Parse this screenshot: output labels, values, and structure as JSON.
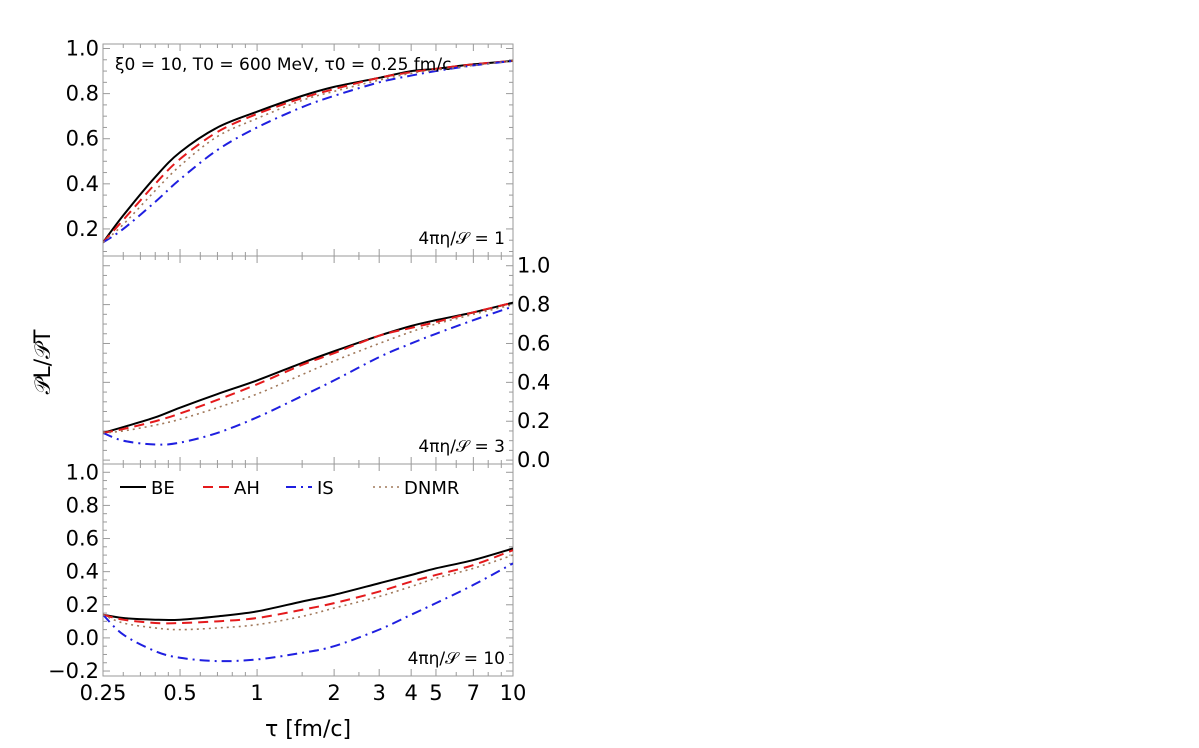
{
  "chart_data": {
    "type": "line",
    "title": "ξ0 = 10, T0 = 600 MeV, τ0 = 0.25 fm/c",
    "xlabel": "τ [fm/c]",
    "ylabel": "𝒫L/𝒫T",
    "x_scale": "log",
    "xlim": [
      0.25,
      10
    ],
    "x_ticks": [
      0.25,
      0.5,
      1,
      2,
      3,
      4,
      5,
      7,
      10
    ],
    "x_tick_labels": [
      "0.25",
      "0.5",
      "1",
      "2",
      "3",
      "4",
      "5",
      "7",
      "10"
    ],
    "legend": {
      "placement": "top-left of bottom panel",
      "entries": [
        {
          "key": "BE",
          "label": "BE",
          "color": "#000000",
          "dash": "solid"
        },
        {
          "key": "AH",
          "label": "AH",
          "color": "#e41a1c",
          "dash": "dashed"
        },
        {
          "key": "IS",
          "label": "IS",
          "color": "#1f1fe0",
          "dash": "dashdot"
        },
        {
          "key": "DNMR",
          "label": "DNMR",
          "color": "#a0785a",
          "dash": "dotted"
        }
      ]
    },
    "x": [
      0.25,
      0.3,
      0.4,
      0.5,
      0.7,
      1,
      1.5,
      2,
      3,
      4,
      5,
      7,
      10
    ],
    "panels": [
      {
        "annotation": "4πη/𝒮 = 1",
        "ylim": [
          0.08,
          1.02
        ],
        "y_axis_side": "left",
        "y_ticks": [
          0.2,
          0.4,
          0.6,
          0.8,
          1.0
        ],
        "y_tick_labels": [
          "0.2",
          "0.4",
          "0.6",
          "0.8",
          "1.0"
        ],
        "series": [
          {
            "name": "BE",
            "values": [
              0.14,
              0.26,
              0.43,
              0.54,
              0.65,
              0.72,
              0.79,
              0.83,
              0.87,
              0.9,
              0.91,
              0.93,
              0.945
            ]
          },
          {
            "name": "AH",
            "values": [
              0.14,
              0.24,
              0.4,
              0.51,
              0.63,
              0.71,
              0.78,
              0.82,
              0.87,
              0.895,
              0.91,
              0.93,
              0.945
            ]
          },
          {
            "name": "IS",
            "values": [
              0.14,
              0.2,
              0.32,
              0.42,
              0.55,
              0.65,
              0.74,
              0.79,
              0.85,
              0.88,
              0.9,
              0.925,
              0.945
            ]
          },
          {
            "name": "DNMR",
            "values": [
              0.14,
              0.22,
              0.37,
              0.48,
              0.61,
              0.69,
              0.77,
              0.81,
              0.86,
              0.89,
              0.905,
              0.925,
              0.945
            ]
          }
        ]
      },
      {
        "annotation": "4πη/𝒮 = 3",
        "ylim": [
          -0.02,
          1.05
        ],
        "y_axis_side": "right",
        "y_ticks": [
          0.0,
          0.2,
          0.4,
          0.6,
          0.8,
          1.0
        ],
        "y_tick_labels": [
          "0.0",
          "0.2",
          "0.4",
          "0.6",
          "0.8",
          "1.0"
        ],
        "series": [
          {
            "name": "BE",
            "values": [
              0.14,
              0.17,
              0.22,
              0.27,
              0.34,
              0.41,
              0.5,
              0.56,
              0.64,
              0.69,
              0.72,
              0.76,
              0.81
            ]
          },
          {
            "name": "AH",
            "values": [
              0.14,
              0.16,
              0.2,
              0.24,
              0.31,
              0.39,
              0.49,
              0.55,
              0.64,
              0.68,
              0.71,
              0.76,
              0.81
            ]
          },
          {
            "name": "IS",
            "values": [
              0.14,
              0.1,
              0.08,
              0.09,
              0.14,
              0.22,
              0.33,
              0.41,
              0.53,
              0.6,
              0.65,
              0.72,
              0.79
            ]
          },
          {
            "name": "DNMR",
            "values": [
              0.14,
              0.15,
              0.18,
              0.21,
              0.27,
              0.34,
              0.44,
              0.51,
              0.6,
              0.66,
              0.7,
              0.75,
              0.8
            ]
          }
        ]
      },
      {
        "annotation": "4πη/𝒮 = 10",
        "ylim": [
          -0.23,
          1.05
        ],
        "y_axis_side": "left",
        "y_ticks": [
          -0.2,
          0.0,
          0.2,
          0.4,
          0.6,
          0.8,
          1.0
        ],
        "y_tick_labels": [
          "−0.2",
          "0.0",
          "0.2",
          "0.4",
          "0.6",
          "0.8",
          "1.0"
        ],
        "series": [
          {
            "name": "BE",
            "values": [
              0.14,
              0.12,
              0.11,
              0.11,
              0.13,
              0.16,
              0.22,
              0.26,
              0.33,
              0.38,
              0.42,
              0.47,
              0.54
            ]
          },
          {
            "name": "AH",
            "values": [
              0.14,
              0.11,
              0.09,
              0.09,
              0.1,
              0.12,
              0.17,
              0.21,
              0.28,
              0.34,
              0.38,
              0.44,
              0.53
            ]
          },
          {
            "name": "IS",
            "values": [
              0.14,
              0.02,
              -0.08,
              -0.12,
              -0.14,
              -0.13,
              -0.09,
              -0.05,
              0.05,
              0.14,
              0.21,
              0.32,
              0.45
            ]
          },
          {
            "name": "DNMR",
            "values": [
              0.14,
              0.09,
              0.06,
              0.05,
              0.06,
              0.08,
              0.13,
              0.18,
              0.25,
              0.31,
              0.36,
              0.42,
              0.5
            ]
          }
        ]
      }
    ]
  }
}
